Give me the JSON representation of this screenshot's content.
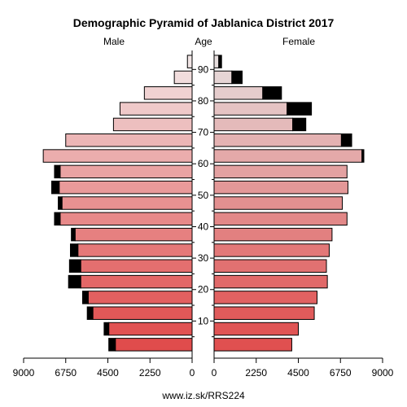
{
  "chart_data": {
    "type": "bar",
    "title": "Demographic Pyramid of Jablanica District 2017",
    "headers": {
      "left": "Male",
      "center": "Age",
      "right": "Female"
    },
    "footer": "www.iz.sk/RRS224",
    "age_groups": [
      "0-4",
      "5-9",
      "10-14",
      "15-19",
      "20-24",
      "25-29",
      "30-34",
      "35-39",
      "40-44",
      "45-49",
      "50-54",
      "55-59",
      "60-64",
      "65-69",
      "70-74",
      "75-79",
      "80-84",
      "85-89",
      "90-94"
    ],
    "age_ticks": [
      90,
      80,
      70,
      60,
      50,
      40,
      30,
      20,
      10
    ],
    "x_ticks_male": [
      "9000",
      "6750",
      "4500",
      "2250",
      "0"
    ],
    "x_ticks_female": [
      "0",
      "2250",
      "4500",
      "6750",
      "9000"
    ],
    "xlim": [
      0,
      9000
    ],
    "series": [
      {
        "name": "Male",
        "base": [
          4100,
          4450,
          5300,
          5550,
          5950,
          5950,
          6100,
          6250,
          7050,
          6950,
          7100,
          7050,
          7950,
          6750,
          4200,
          3850,
          2550,
          950,
          250
        ],
        "excess": [
          350,
          250,
          300,
          300,
          650,
          600,
          400,
          200,
          300,
          200,
          400,
          300,
          0,
          0,
          0,
          0,
          0,
          0,
          0
        ]
      },
      {
        "name": "Female",
        "base": [
          4150,
          4500,
          5350,
          5500,
          6050,
          6000,
          6150,
          6300,
          7100,
          6850,
          7150,
          7100,
          7900,
          6800,
          4200,
          3900,
          2600,
          950,
          250
        ],
        "excess": [
          0,
          0,
          0,
          0,
          0,
          0,
          0,
          0,
          0,
          0,
          0,
          0,
          100,
          550,
          700,
          1300,
          1000,
          550,
          150
        ]
      }
    ],
    "colors": {
      "male_young": "#e04c4c",
      "male_old": "#f2e6e6",
      "female_young": "#e05050",
      "female_old": "#e6dede",
      "excess": "#000000",
      "outline": "#000000"
    }
  }
}
